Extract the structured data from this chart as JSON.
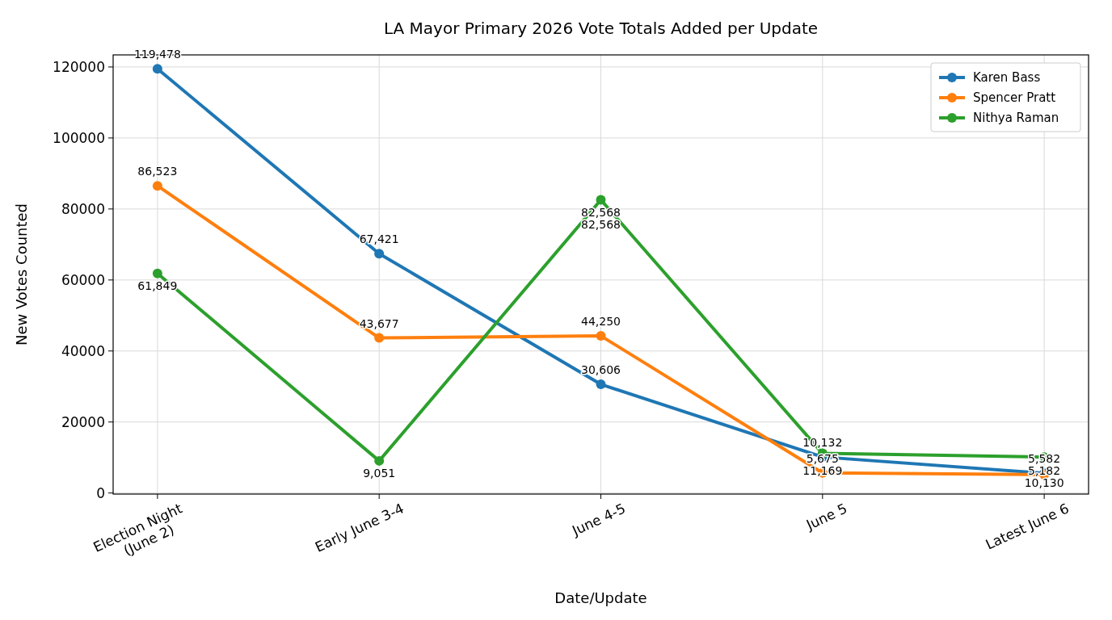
{
  "chart_data": {
    "type": "line",
    "title": "LA Mayor Primary 2026 Vote Totals Added per Update",
    "xlabel": "Date/Update",
    "ylabel": "New Votes Counted",
    "categories": [
      "Election Night\n(June 2)",
      "Early June 3-4",
      "June 4-5",
      "June 5",
      "Latest June 6"
    ],
    "series": [
      {
        "name": "Karen Bass",
        "color": "#1f77b4",
        "values": [
          119478,
          67421,
          30606,
          10132,
          5582
        ],
        "value_labels": [
          "119,478",
          "67,421",
          "30,606",
          "10,132",
          "5,582"
        ]
      },
      {
        "name": "Spencer Pratt",
        "color": "#ff7f0e",
        "values": [
          86523,
          43677,
          44250,
          5675,
          5182
        ],
        "value_labels": [
          "86,523",
          "43,677",
          "44,250",
          "5,675",
          "5,182"
        ]
      },
      {
        "name": "Nithya Raman",
        "color": "#2ca02c",
        "values": [
          61849,
          9051,
          82568,
          11169,
          10130
        ],
        "value_labels": [
          "61,849",
          "9,051",
          "82,568",
          "11,169",
          "10,130"
        ]
      }
    ],
    "annotations": [
      "82,568"
    ],
    "ylim": [
      -300,
      123400
    ],
    "yticks": [
      0,
      20000,
      40000,
      60000,
      80000,
      100000,
      120000
    ],
    "grid": true,
    "legend": "top right",
    "marker": "circle",
    "line_style": "solid"
  }
}
